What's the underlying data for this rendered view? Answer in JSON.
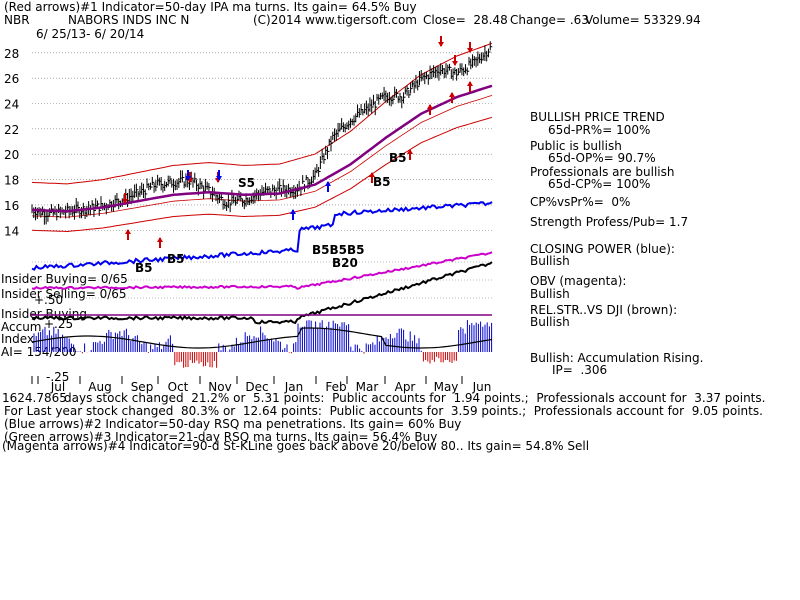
{
  "header": {
    "line1": "(Red arrows)#1 Indicator=50-day IPA ma turns. Its gain= 64.5% Buy",
    "ticker": "NBR",
    "company": "NABORS INDS INC N",
    "copyright": "(C)2014 www.tigersoft.com",
    "close": "Close=  28.48",
    "change": "Change= .63",
    "volume": "Volume= 53329.94",
    "date_range": "6/ 25/13- 6/ 20/14"
  },
  "sidebar": {
    "trend_title": "BULLISH PRICE TREND",
    "pr": "65d-PR%= 100%",
    "public": "Public is bullish",
    "op": "65d-OP%= 90.7%",
    "pros": "Professionals are bullish",
    "cp": "65d-CP%= 100%",
    "cpvspr": "CP%vsPr%=  0%",
    "strength": "Strength Profess/Pub= 1.7",
    "closing_power": "CLOSING POWER (blue):",
    "closing_power_val": "Bullish",
    "obv": "OBV (magenta):",
    "obv_val": "Bullish",
    "relstr": "REL.STR..VS DJI (brown):",
    "relstr_val": "Bullish",
    "accum": "Bullish: Accumulation Rising.",
    "ip": "IP=  .306"
  },
  "indicator_labels": {
    "insider_buying": "Insider Buying= 0/65",
    "insider_selling": "Insider Selling= 0/65",
    "insider_buying2": "Insider Buying",
    "accum": "Accum",
    "index": "Index",
    "ai": "AI= 154/200",
    "plus50": "+.50",
    "plus25": "+.25",
    "minus25": "-.25"
  },
  "signals": [
    {
      "text": "B5",
      "color": "#000000"
    },
    {
      "text": "B5",
      "color": "#000000"
    },
    {
      "text": "S5",
      "color": "#000000"
    },
    {
      "text": "B5",
      "color": "#000000"
    },
    {
      "text": "B5",
      "color": "#000000"
    },
    {
      "text": "B20",
      "color": "#000000"
    },
    {
      "text": "B5B5B5",
      "color": "#000000"
    }
  ],
  "footer": {
    "line1_prefix": "1624.7865",
    "line1": "days stock changed  21.2% or  5.31 points:  Public accounts for  1.94 points.;  Professionals account for  3.37 points.",
    "line2": "For Last year stock changed  80.3% or  12.64 points:  Public accounts for  3.59 points.;  Professionals account for  9.05 points.",
    "line3": "(Blue arrows)#2 Indicator=50-day RSQ ma penetrations. Its gain= 60% Buy",
    "line4": "(Green arrows)#3 Indicator=21-day RSQ ma turns. Its gain= 56.4% Buy",
    "line5": "(Magenta arrows)#4 Indicator=90-d St-KLine goes back above 20/below 80.. Its gain= 54.8% Sell"
  },
  "chart_data": {
    "type": "line",
    "title": "NABORS INDS INC N",
    "xlabel": "",
    "ylabel": "",
    "months": [
      "Jul",
      "Aug",
      "Sep",
      "Oct",
      "Nov",
      "Dec",
      "Jan",
      "Feb",
      "Mar",
      "Apr",
      "May",
      "Jun"
    ],
    "yticks": [
      14,
      16,
      18,
      20,
      22,
      24,
      26,
      28
    ],
    "ylim": [
      12.6,
      29.8
    ],
    "grid": true,
    "colors": {
      "price": "#000000",
      "ma": "#800080",
      "band": "#cc0000",
      "cp": "#0000ee",
      "obv": "#cc00cc",
      "relstr": "#000000",
      "accum_pos": "#0000cc",
      "accum_neg": "#cc0000"
    },
    "series": [
      {
        "name": "Close",
        "x_week": [
          0,
          2,
          4,
          6,
          8,
          10,
          12,
          14,
          16,
          18,
          20,
          22,
          24,
          26,
          28,
          30,
          32,
          34,
          36,
          38,
          40,
          42,
          44,
          46,
          48,
          50,
          52
        ],
        "values": [
          15.6,
          15.3,
          15.5,
          15.7,
          15.9,
          16.4,
          16.9,
          17.6,
          17.8,
          17.9,
          17.1,
          16.2,
          16.4,
          17.0,
          17.2,
          17.3,
          18.3,
          21.3,
          22.7,
          23.6,
          24.6,
          24.6,
          25.9,
          26.7,
          26.4,
          27.2,
          28.5
        ]
      },
      {
        "name": "50-day MA",
        "x_week": [
          0,
          4,
          8,
          12,
          16,
          20,
          24,
          28,
          32,
          36,
          40,
          44,
          48,
          52
        ],
        "values": [
          15.6,
          15.5,
          15.8,
          16.3,
          16.8,
          17.0,
          16.8,
          16.9,
          17.6,
          19.2,
          21.3,
          23.2,
          24.5,
          25.4
        ]
      }
    ]
  }
}
